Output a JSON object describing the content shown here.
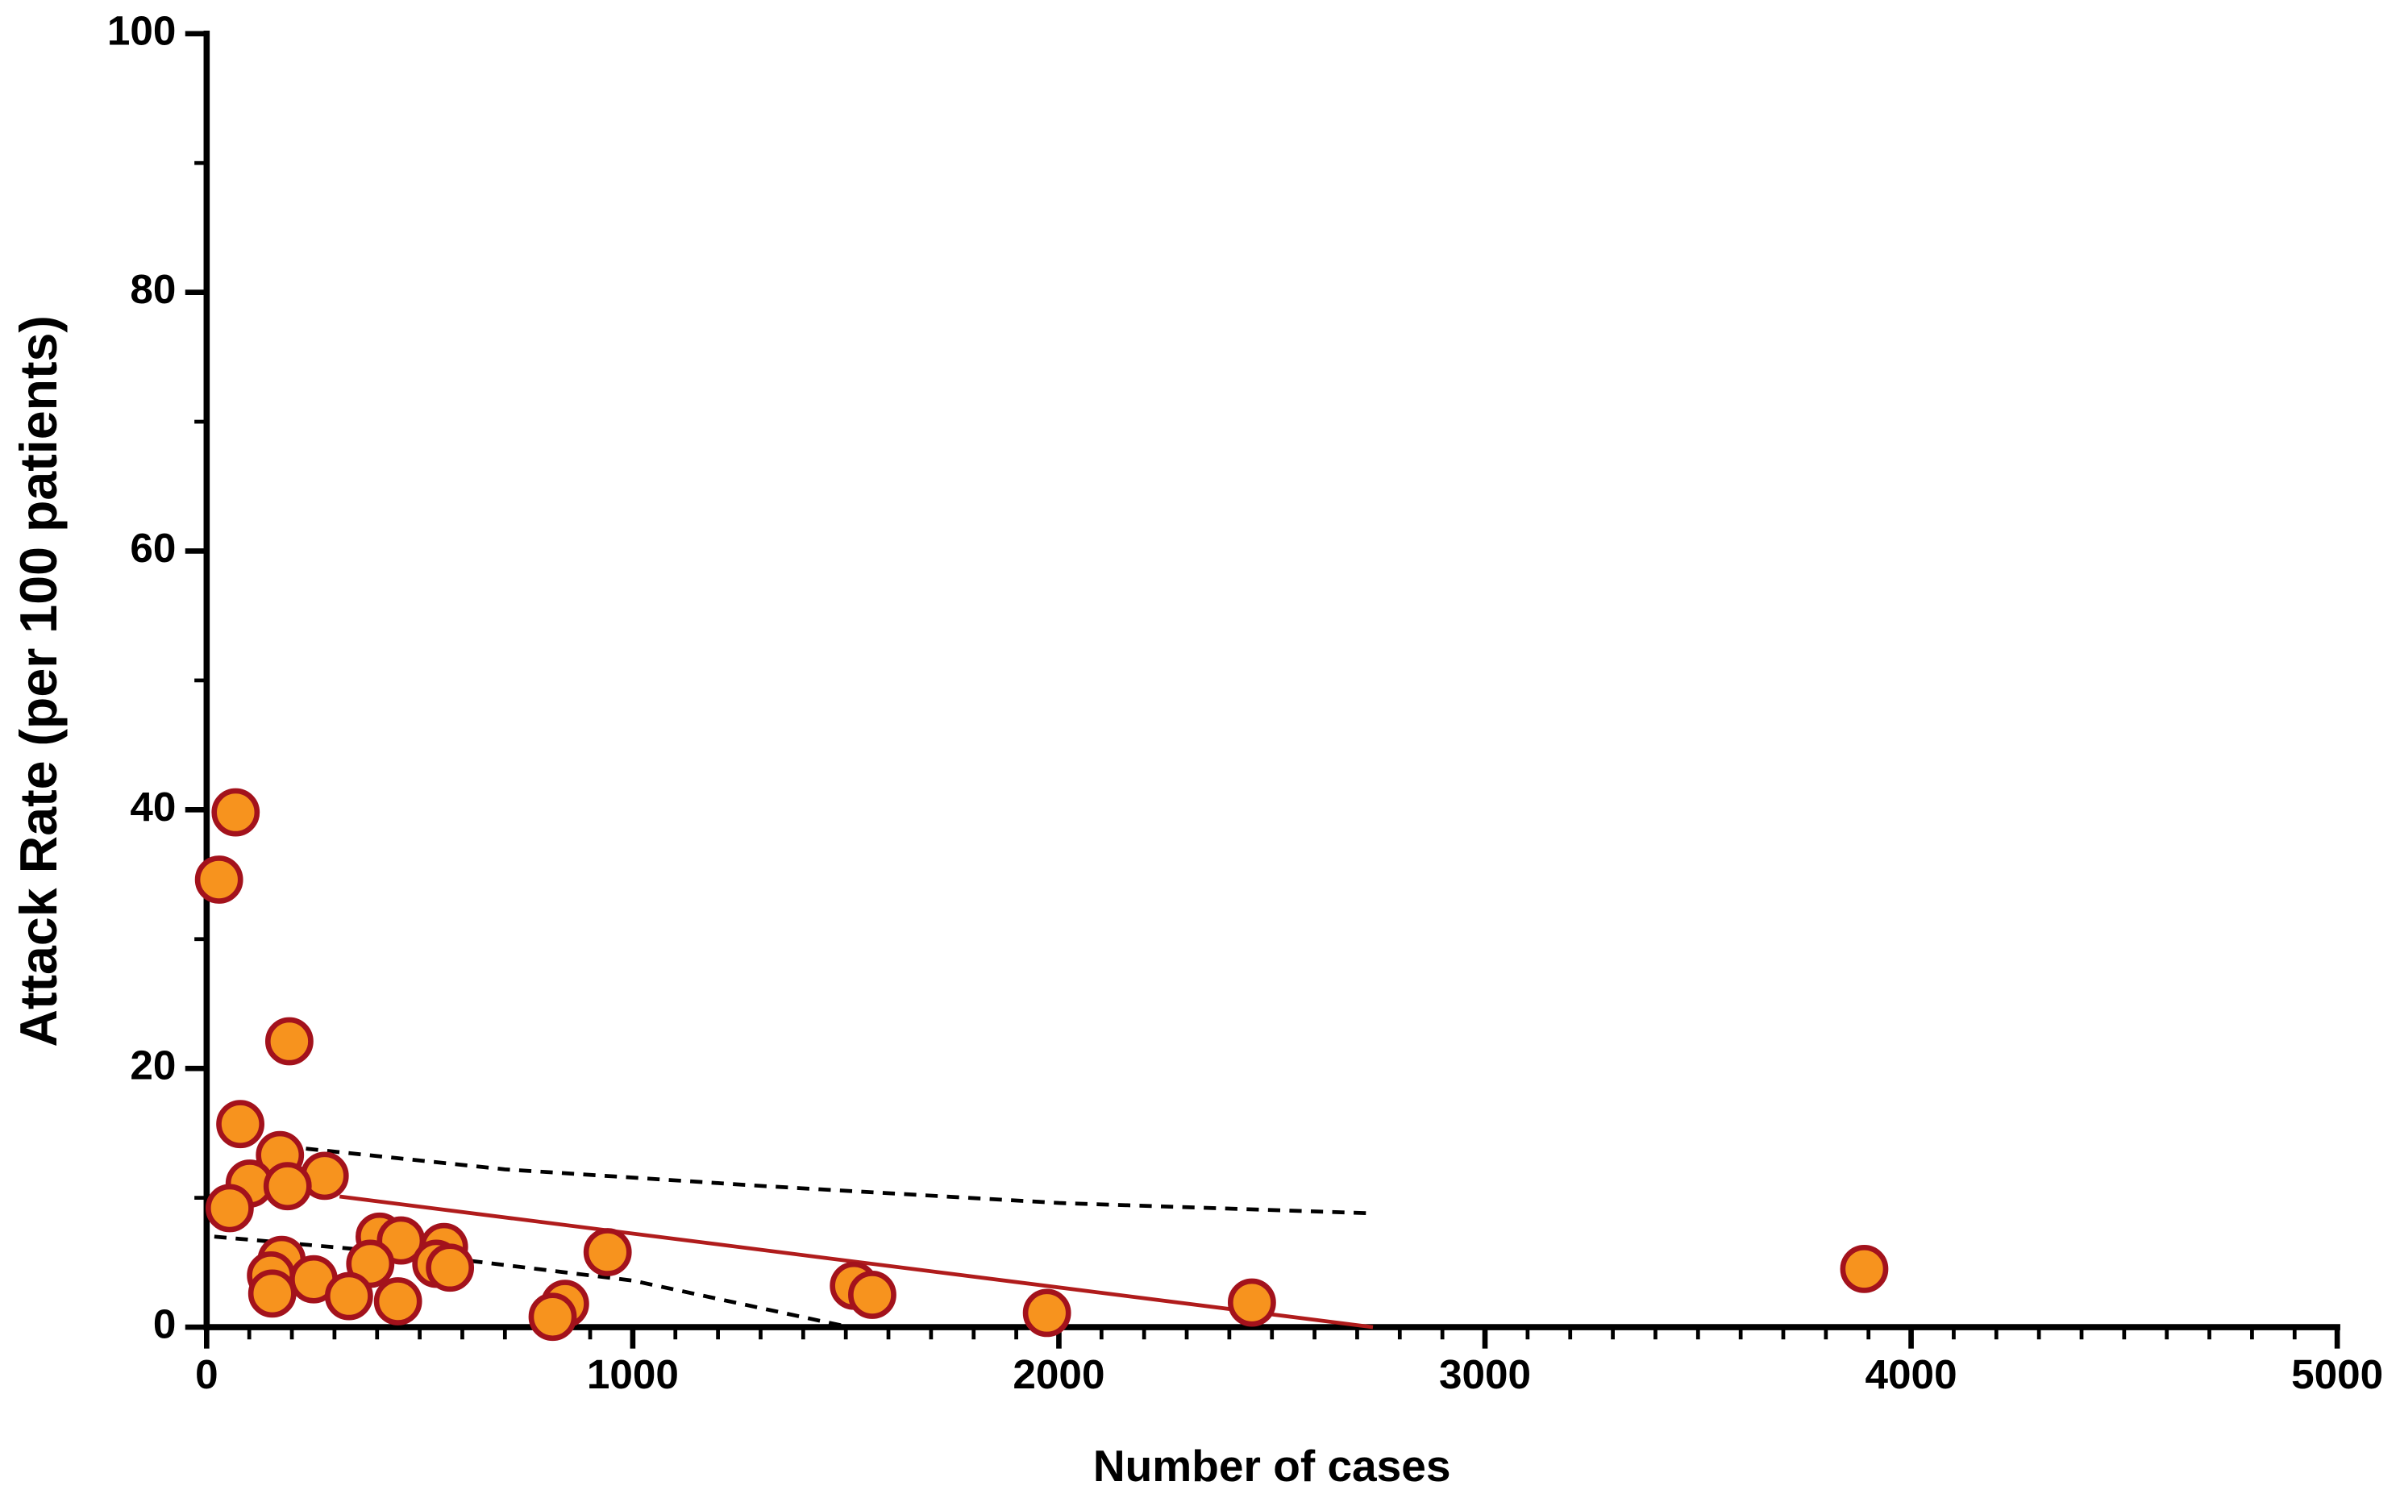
{
  "chart_data": {
    "type": "scatter",
    "xlabel": "Number of cases",
    "ylabel": "Attack Rate (per 100 patients)",
    "xlim": [
      0,
      5000
    ],
    "xticks": [
      0,
      1000,
      2000,
      3000,
      4000,
      5000
    ],
    "xminor": 100,
    "ylim": [
      0,
      100
    ],
    "yticks": [
      0,
      20,
      40,
      60,
      80,
      100
    ],
    "yminor": 10,
    "series": [
      {
        "color": "#f7931e",
        "edgecolor": "#a3121c",
        "x": [
          29,
          68,
          194,
          79,
          172,
          277,
          101,
          190,
          54,
          941,
          406,
          456,
          557,
          176,
          384,
          539,
          571,
          151,
          251,
          154,
          334,
          449,
          1519,
          1562,
          841,
          812,
          1972,
          2453,
          3890
        ],
        "values": [
          34.6,
          39.8,
          22.1,
          15.7,
          13.3,
          11.7,
          11.1,
          10.9,
          9.2,
          5.8,
          7.0,
          6.7,
          6.2,
          5.2,
          4.9,
          4.9,
          4.6,
          4.0,
          3.7,
          2.6,
          2.4,
          2.0,
          3.2,
          2.5,
          1.8,
          0.8,
          1.1,
          1.9,
          4.5
        ]
      }
    ],
    "lines": [
      {
        "style": "solid",
        "color": "#b01c1c",
        "x": [
          312,
          2737
        ],
        "values": [
          10.1,
          0
        ]
      },
      {
        "style": "dashed",
        "color": "#000000",
        "x": [
          233,
          700,
          1311,
          2000,
          2737
        ],
        "values": [
          13.8,
          12.2,
          10.9,
          9.6,
          8.8
        ]
      },
      {
        "style": "dashed",
        "color": "#000000",
        "x": [
          18,
          500,
          1000,
          1509
        ],
        "values": [
          7.0,
          5.6,
          3.6,
          0
        ]
      }
    ]
  }
}
